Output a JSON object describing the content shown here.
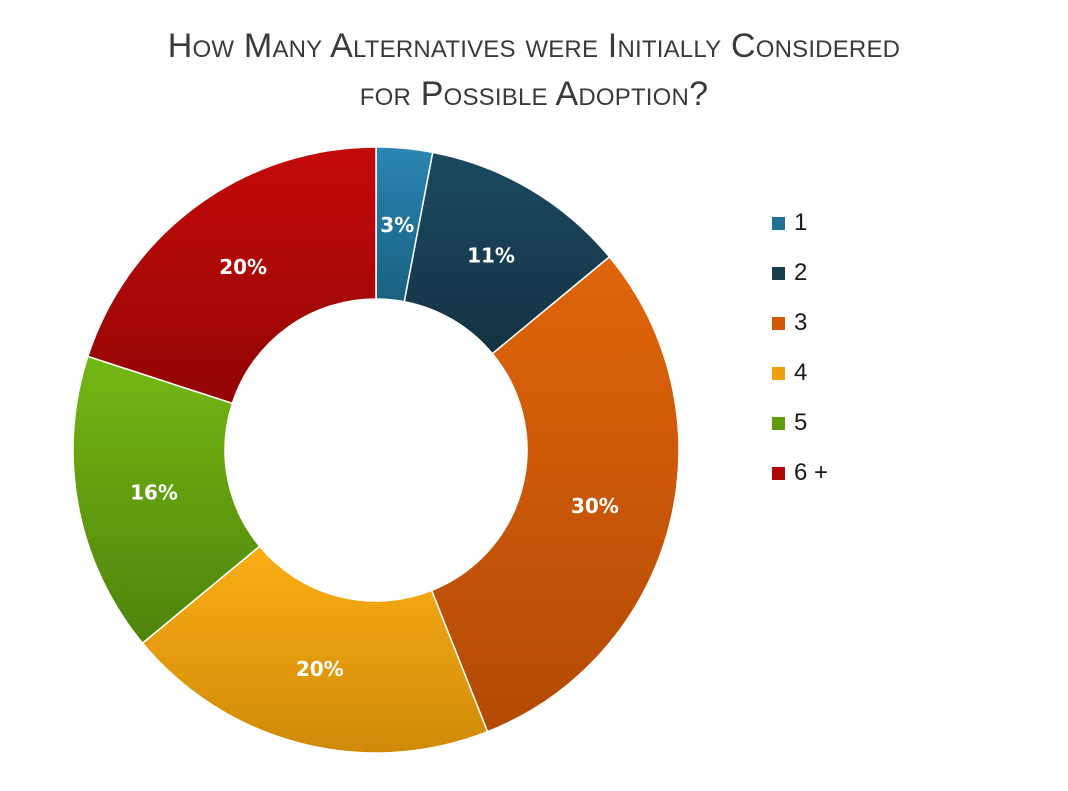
{
  "chart_data": {
    "type": "pie",
    "style": "donut",
    "title_line1": "How Many Alternatives were Initially Considered",
    "title_line2": "for Possible Adoption?",
    "categories": [
      "1",
      "2",
      "3",
      "4",
      "5",
      "6 +"
    ],
    "values": [
      3,
      11,
      30,
      20,
      16,
      20
    ],
    "value_labels": [
      "3%",
      "11%",
      "30%",
      "20%",
      "16%",
      "20%"
    ],
    "colors": [
      "#1f6f97",
      "#173c4f",
      "#d25a06",
      "#eea10a",
      "#5e9c0d",
      "#b00806"
    ],
    "colors_light": [
      "#2a86b3",
      "#1c4a61",
      "#e0650a",
      "#fbae14",
      "#74b813",
      "#c40a08"
    ],
    "colors_dark": [
      "#19607f",
      "#133242",
      "#b24a05",
      "#cf8a08",
      "#4e830b",
      "#920605"
    ],
    "legend_position": "right"
  }
}
